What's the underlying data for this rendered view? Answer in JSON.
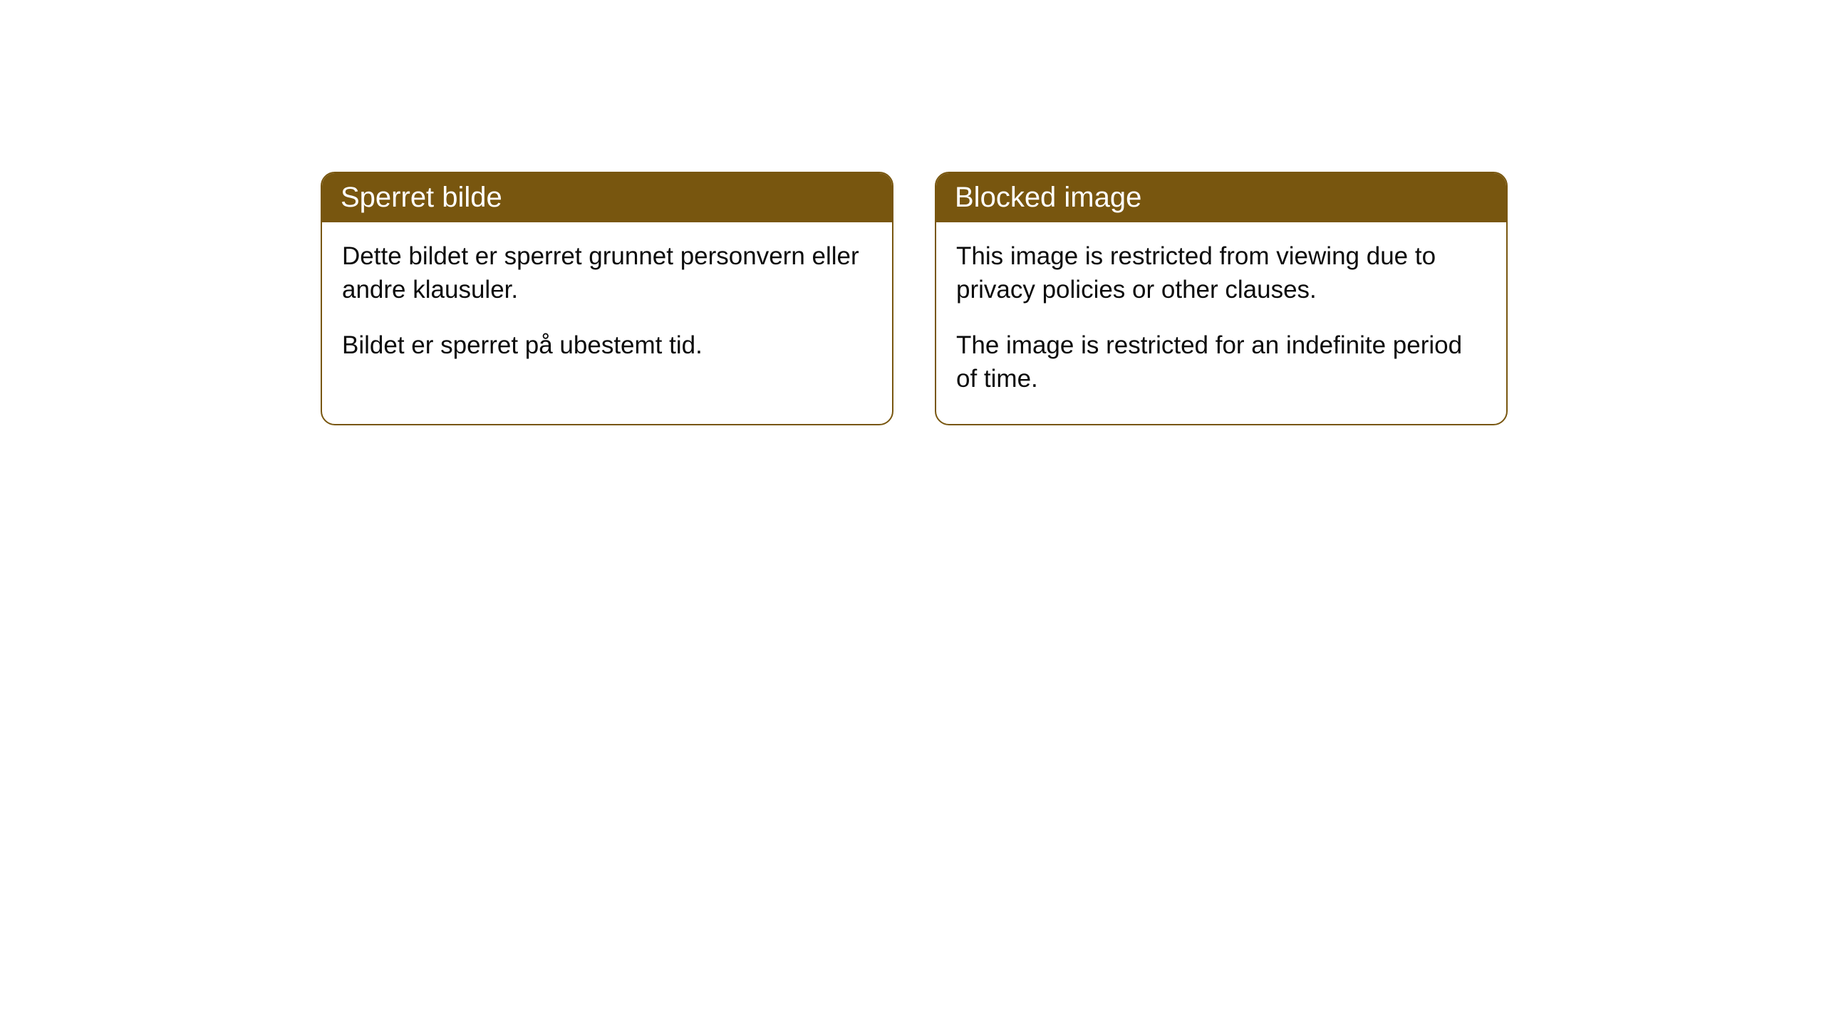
{
  "cards": [
    {
      "title": "Sperret bilde",
      "paragraph1": "Dette bildet er sperret grunnet personvern eller andre klausuler.",
      "paragraph2": "Bildet er sperret på ubestemt tid."
    },
    {
      "title": "Blocked image",
      "paragraph1": "This image is restricted from viewing due to privacy policies or other clauses.",
      "paragraph2": "The image is restricted for an indefinite period of time."
    }
  ],
  "style": {
    "header_bg": "#78560f",
    "header_text_color": "#ffffff",
    "border_color": "#78560f",
    "body_bg": "#ffffff",
    "body_text_color": "#0b0b0b",
    "border_radius": 20,
    "title_fontsize": 40,
    "body_fontsize": 35
  }
}
